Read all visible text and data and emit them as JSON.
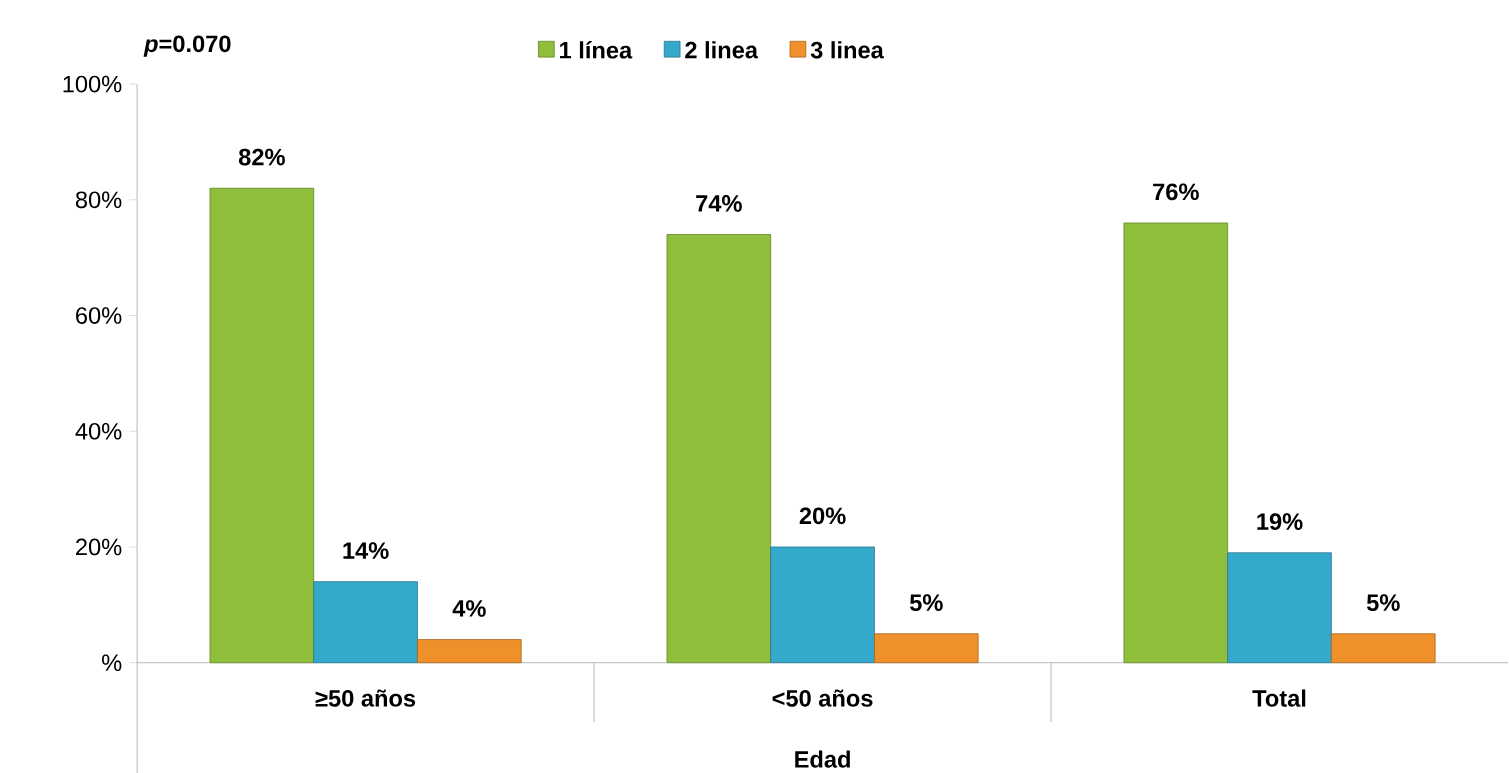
{
  "chart_data": {
    "type": "bar",
    "annotations": [
      "*p*=0.070"
    ],
    "xlabel": "Edad",
    "categories": [
      "≥50 años",
      "<50 años",
      "Total"
    ],
    "series": [
      {
        "name": "1 línea",
        "color": "#8fbf3a",
        "values": [
          82,
          74,
          76
        ],
        "value_labels": [
          "82%",
          "74%",
          "76%"
        ]
      },
      {
        "name": "2 linea",
        "color": "#35a9cc",
        "values": [
          14,
          20,
          19
        ],
        "value_labels": [
          "14%",
          "20%",
          "19%"
        ]
      },
      {
        "name": "3 linea",
        "color": "#f0902a",
        "values": [
          4,
          5,
          5
        ],
        "value_labels": [
          "4%",
          "5%",
          "5%"
        ]
      }
    ],
    "ylim": [
      0,
      100
    ],
    "yticks": [
      {
        "value": 0,
        "label": "%"
      },
      {
        "value": 20,
        "label": "20%"
      },
      {
        "value": 40,
        "label": "40%"
      },
      {
        "value": 60,
        "label": "60%"
      },
      {
        "value": 80,
        "label": "80%"
      },
      {
        "value": 100,
        "label": "100%"
      }
    ],
    "legend": "top"
  }
}
